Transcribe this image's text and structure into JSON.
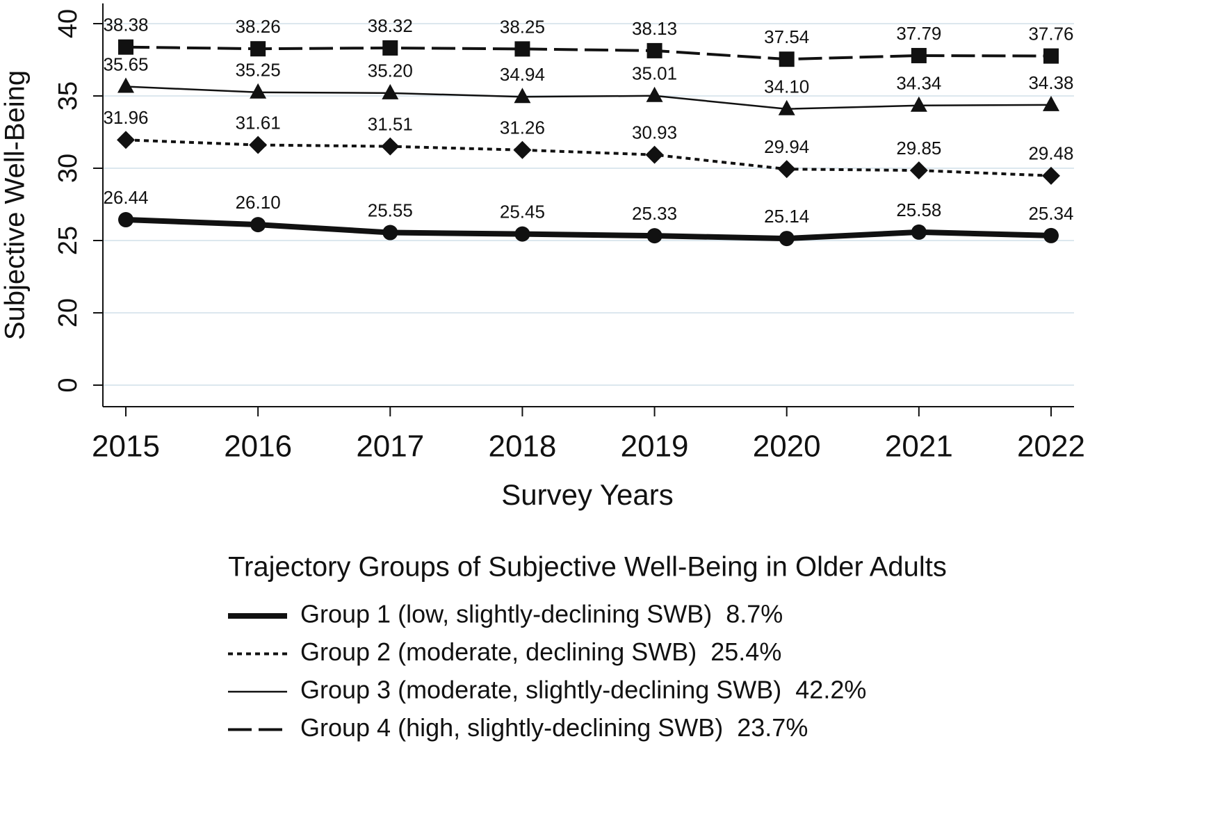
{
  "chart_data": {
    "type": "line",
    "x_label": "Survey Years",
    "y_label": "Subjective Well-Being",
    "categories": [
      "2015",
      "2016",
      "2017",
      "2018",
      "2019",
      "2020",
      "2021",
      "2022"
    ],
    "ylim": [
      0,
      41.4
    ],
    "yticks": [
      0,
      20,
      25,
      30,
      35,
      40
    ],
    "y_axis_break": true,
    "grid": true,
    "legend_title": "Trajectory Groups of Subjective Well-Being in Older Adults",
    "legend_position": "bottom",
    "series": [
      {
        "name": "Group 1 (low, slightly-declining SWB)  8.7%",
        "color": "#111111",
        "line_style": "solid",
        "line_width": 8,
        "marker": "circle",
        "values": [
          26.44,
          26.1,
          25.55,
          25.45,
          25.33,
          25.14,
          25.58,
          25.34
        ],
        "value_labels": [
          "26.44",
          "26.10",
          "25.55",
          "25.45",
          "25.33",
          "25.14",
          "25.58",
          "25.34"
        ]
      },
      {
        "name": "Group 2 (moderate, declining SWB)  25.4%",
        "color": "#111111",
        "line_style": "dotted",
        "line_width": 4,
        "marker": "diamond",
        "values": [
          31.96,
          31.61,
          31.51,
          31.26,
          30.93,
          29.94,
          29.85,
          29.48
        ],
        "value_labels": [
          "31.96",
          "31.61",
          "31.51",
          "31.26",
          "30.93",
          "29.94",
          "29.85",
          "29.48"
        ]
      },
      {
        "name": "Group 3 (moderate, slightly-declining SWB)  42.2%",
        "color": "#111111",
        "line_style": "solid",
        "line_width": 2.5,
        "marker": "triangle",
        "values": [
          35.65,
          35.25,
          35.2,
          34.94,
          35.01,
          34.1,
          34.34,
          34.38
        ],
        "value_labels": [
          "35.65",
          "35.25",
          "35.20",
          "34.94",
          "35.01",
          "34.10",
          "34.34",
          "34.38"
        ]
      },
      {
        "name": "Group 4 (high, slightly-declining SWB)  23.7%",
        "color": "#111111",
        "line_style": "longdash",
        "line_width": 4,
        "marker": "square",
        "values": [
          38.38,
          38.26,
          38.32,
          38.25,
          38.13,
          37.54,
          37.79,
          37.76
        ],
        "value_labels": [
          "38.38",
          "38.26",
          "38.32",
          "38.25",
          "38.13",
          "37.54",
          "37.79",
          "37.76"
        ]
      }
    ]
  }
}
